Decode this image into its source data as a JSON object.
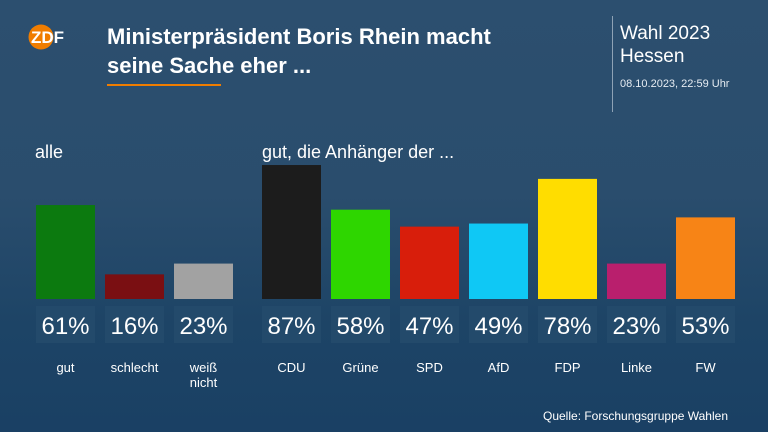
{
  "header": {
    "logo_text": "ZDF",
    "title_line1": "Ministerpräsident Boris Rhein macht",
    "title_line2": "seine Sache eher ...",
    "election_line1": "Wahl 2023",
    "election_line2": "Hessen",
    "datetime": "08.10.2023, 22:59 Uhr"
  },
  "footer": {
    "source": "Quelle: Forschungsgruppe Wahlen"
  },
  "colors": {
    "accent": "#f07d00",
    "label_box": "#234a6b"
  },
  "chart_data": [
    {
      "type": "bar",
      "title": "alle",
      "categories": [
        [
          "gut"
        ],
        [
          "schlecht"
        ],
        [
          "weiß",
          "nicht"
        ]
      ],
      "values": [
        61,
        16,
        23
      ],
      "value_labels": [
        "61%",
        "16%",
        "23%"
      ],
      "colors": [
        "#0c7a0f",
        "#7a0f12",
        "#a2a2a2"
      ]
    },
    {
      "type": "bar",
      "title": "gut, die Anhänger der ...",
      "categories": [
        [
          "CDU"
        ],
        [
          "Grüne"
        ],
        [
          "SPD"
        ],
        [
          "AfD"
        ],
        [
          "FDP"
        ],
        [
          "Linke"
        ],
        [
          "FW"
        ]
      ],
      "values": [
        87,
        58,
        47,
        49,
        78,
        23,
        53
      ],
      "value_labels": [
        "87%",
        "58%",
        "47%",
        "49%",
        "78%",
        "23%",
        "53%"
      ],
      "colors": [
        "#1c1c1c",
        "#2ed600",
        "#d81e0b",
        "#0fc8f5",
        "#ffdd00",
        "#b91f6d",
        "#f78416"
      ]
    }
  ]
}
